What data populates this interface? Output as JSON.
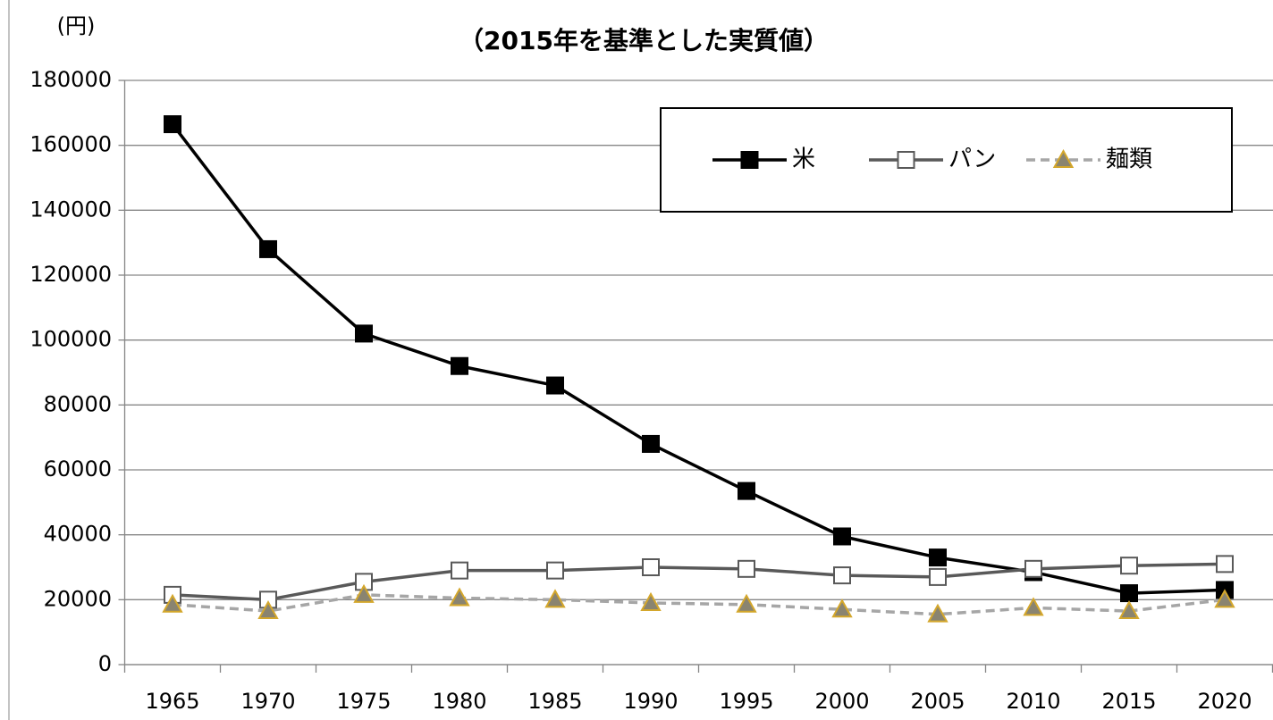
{
  "chart_data": {
    "type": "line",
    "title": "（2015年を基準とした実質値）",
    "y_label": "(円)",
    "categories": [
      "1965",
      "1970",
      "1975",
      "1980",
      "1985",
      "1990",
      "1995",
      "2000",
      "2005",
      "2010",
      "2015",
      "2020"
    ],
    "series": [
      {
        "name": "米",
        "color": "#000000",
        "marker": "square",
        "marker_fill": "#000000",
        "dashed": false,
        "values": [
          166500,
          128000,
          102000,
          92000,
          86000,
          68000,
          53500,
          39500,
          33000,
          28500,
          22000,
          23000
        ]
      },
      {
        "name": "パン",
        "color": "#595959",
        "marker": "square",
        "marker_fill": "#ffffff",
        "dashed": false,
        "values": [
          21500,
          20000,
          25500,
          29000,
          29000,
          30000,
          29500,
          27500,
          27000,
          29500,
          30500,
          31000
        ]
      },
      {
        "name": "麺類",
        "color": "#a6a6a6",
        "marker": "triangle",
        "marker_fill": "#8a8470",
        "marker_stroke": "#d4a72c",
        "dashed": true,
        "values": [
          18500,
          16500,
          21500,
          20500,
          20000,
          19000,
          18500,
          17000,
          15500,
          17500,
          16500,
          20000
        ]
      }
    ],
    "ylim": [
      0,
      180000
    ],
    "yticks": [
      0,
      20000,
      40000,
      60000,
      80000,
      100000,
      120000,
      140000,
      160000,
      180000
    ],
    "grid": true,
    "legend": "top-right"
  }
}
